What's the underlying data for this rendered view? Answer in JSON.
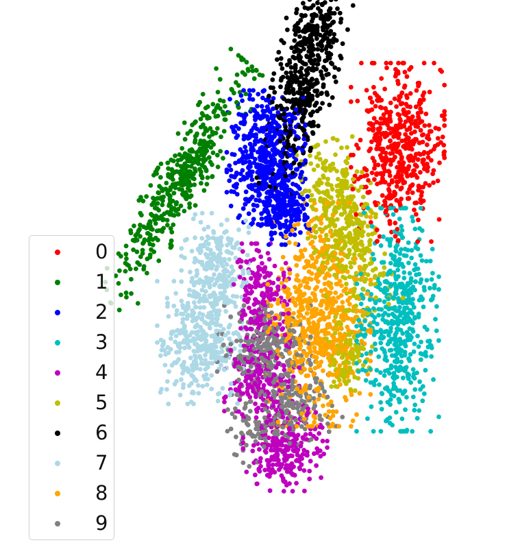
{
  "chart_data": {
    "type": "scatter",
    "title": "",
    "xlabel": "",
    "ylabel": "",
    "axes_visible": false,
    "grid": false,
    "legend_position": "lower-left",
    "xlim": [
      0,
      100
    ],
    "ylim": [
      0,
      100
    ],
    "series": [
      {
        "name": "0",
        "color": "#ff0000",
        "clusters": [
          {
            "cx": 77.5,
            "cy": 72,
            "sx": 5,
            "sy": 8,
            "n": 500,
            "angle": 0
          }
        ]
      },
      {
        "name": "1",
        "color": "#008000",
        "clusters": [
          {
            "cx": 26,
            "cy": 66,
            "sx": 2.6,
            "sy": 13,
            "n": 450,
            "angle": -35
          }
        ]
      },
      {
        "name": "2",
        "color": "#0000ff",
        "clusters": [
          {
            "cx": 46.5,
            "cy": 71,
            "sx": 4.2,
            "sy": 6,
            "n": 500,
            "angle": 0
          },
          {
            "cx": 51,
            "cy": 61.5,
            "sx": 2.8,
            "sy": 3.5,
            "n": 220,
            "angle": 0
          }
        ]
      },
      {
        "name": "3",
        "color": "#00bfbf",
        "clusters": [
          {
            "cx": 77.5,
            "cy": 39,
            "sx": 4.4,
            "sy": 10,
            "n": 520,
            "angle": 0
          }
        ]
      },
      {
        "name": "4",
        "color": "#bf00bf",
        "clusters": [
          {
            "cx": 45.5,
            "cy": 43,
            "sx": 3,
            "sy": 5,
            "n": 200,
            "angle": 0
          },
          {
            "cx": 45.5,
            "cy": 28.5,
            "sx": 4,
            "sy": 4,
            "n": 200,
            "angle": 0
          },
          {
            "cx": 51,
            "cy": 14,
            "sx": 4.5,
            "sy": 4,
            "n": 250,
            "angle": 0
          }
        ]
      },
      {
        "name": "5",
        "color": "#bfbf00",
        "clusters": [
          {
            "cx": 65,
            "cy": 57,
            "sx": 4,
            "sy": 8,
            "n": 450,
            "angle": 20
          },
          {
            "cx": 66,
            "cy": 32,
            "sx": 2.5,
            "sy": 4,
            "n": 120,
            "angle": 0
          }
        ]
      },
      {
        "name": "6",
        "color": "#000000",
        "clusters": [
          {
            "cx": 56,
            "cy": 88,
            "sx": 3.3,
            "sy": 11,
            "n": 550,
            "angle": -15
          }
        ]
      },
      {
        "name": "7",
        "color": "#add8e6",
        "clusters": [
          {
            "cx": 34.5,
            "cy": 49,
            "sx": 3.6,
            "sy": 5,
            "n": 250,
            "angle": 0
          },
          {
            "cx": 31,
            "cy": 34.5,
            "sx": 4.6,
            "sy": 5.5,
            "n": 330,
            "angle": 0
          }
        ]
      },
      {
        "name": "8",
        "color": "#ffa500",
        "clusters": [
          {
            "cx": 59,
            "cy": 40,
            "sx": 5.5,
            "sy": 10,
            "n": 650,
            "angle": 0
          }
        ]
      },
      {
        "name": "9",
        "color": "#808080",
        "clusters": [
          {
            "cx": 46,
            "cy": 33,
            "sx": 5,
            "sy": 4,
            "n": 250,
            "angle": 0
          },
          {
            "cx": 50,
            "cy": 21,
            "sx": 6,
            "sy": 3.5,
            "n": 250,
            "angle": 20
          }
        ]
      }
    ]
  }
}
